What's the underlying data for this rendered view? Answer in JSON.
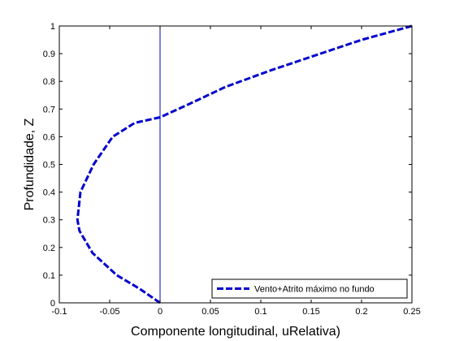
{
  "chart_data": {
    "type": "line",
    "title": "",
    "xlabel": "Componente longitudinal, uRelativa)",
    "ylabel": "Profundidade, Z",
    "xlim": [
      -0.1,
      0.25
    ],
    "ylim": [
      0,
      1
    ],
    "xticks": [
      "-0.1",
      "-0.05",
      "0",
      "0.05",
      "0.1",
      "0.15",
      "0.2",
      "0.25"
    ],
    "yticks": [
      "0",
      "0.1",
      "0.2",
      "0.3",
      "0.4",
      "0.5",
      "0.6",
      "0.7",
      "0.8",
      "0.9",
      "1"
    ],
    "grid": false,
    "legend_position": "bottom-right",
    "vertical_reference_x": 0,
    "series": [
      {
        "name": "Vento+Atrito máximo no fundo",
        "color": "#0000cc",
        "style": "dashed",
        "x": [
          0.0,
          -0.02,
          -0.043,
          -0.067,
          -0.08,
          -0.082,
          -0.079,
          -0.066,
          -0.047,
          -0.025,
          0.0,
          0.03,
          0.065,
          0.11,
          0.155,
          0.2,
          0.25
        ],
        "y": [
          0.0,
          0.05,
          0.1,
          0.18,
          0.26,
          0.3,
          0.4,
          0.5,
          0.6,
          0.65,
          0.67,
          0.72,
          0.78,
          0.84,
          0.895,
          0.95,
          1.0
        ]
      }
    ]
  }
}
